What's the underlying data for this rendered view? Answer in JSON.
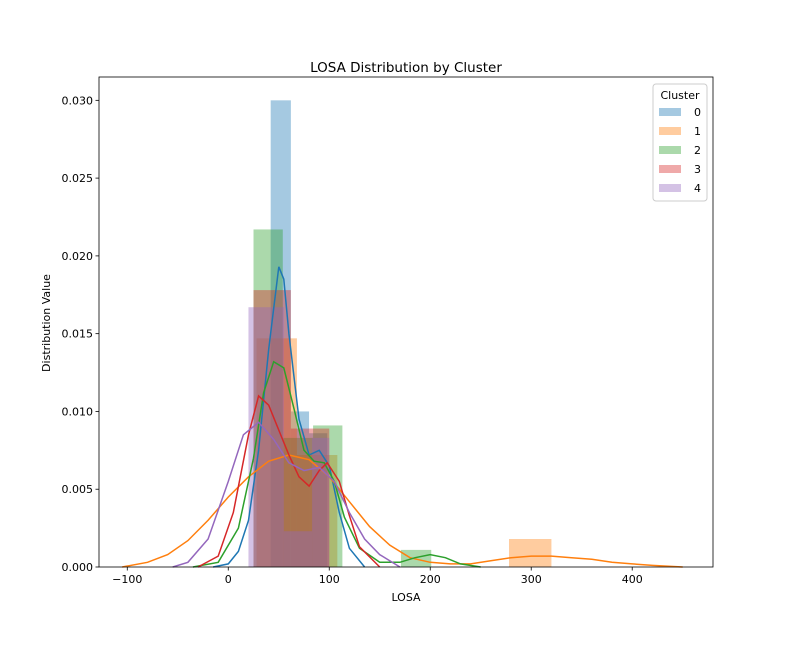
{
  "chart_data": {
    "type": "histogram+kde",
    "title": "LOSA Distribution by Cluster",
    "xlabel": "LOSA",
    "ylabel": "Distribution Value",
    "xlim": [
      -128,
      480
    ],
    "ylim": [
      0,
      0.0315
    ],
    "xticks": [
      -100,
      0,
      100,
      200,
      300,
      400
    ],
    "yticks": [
      "0.000",
      "0.005",
      "0.010",
      "0.015",
      "0.020",
      "0.025",
      "0.030"
    ],
    "legend": {
      "title": "Cluster",
      "position": "top-right"
    },
    "series": [
      {
        "name": "0",
        "color": "#1f77b4",
        "hist_bins": [
          [
            42,
            62,
            0.03
          ],
          [
            62,
            80,
            0.01
          ],
          [
            80,
            98,
            0.0086
          ]
        ],
        "kde": [
          [
            -15,
            0
          ],
          [
            0,
            0.0002
          ],
          [
            10,
            0.001
          ],
          [
            20,
            0.003
          ],
          [
            30,
            0.0075
          ],
          [
            40,
            0.014
          ],
          [
            50,
            0.0193
          ],
          [
            55,
            0.0185
          ],
          [
            60,
            0.015
          ],
          [
            70,
            0.0095
          ],
          [
            80,
            0.0072
          ],
          [
            90,
            0.0075
          ],
          [
            100,
            0.0065
          ],
          [
            110,
            0.0035
          ],
          [
            120,
            0.0012
          ],
          [
            135,
            0
          ]
        ]
      },
      {
        "name": "1",
        "color": "#ff7f0e",
        "hist_bins": [
          [
            28,
            68,
            0.0147
          ],
          [
            68,
            108,
            0.0072
          ],
          [
            278,
            320,
            0.0018
          ]
        ],
        "kde": [
          [
            -105,
            0
          ],
          [
            -80,
            0.0003
          ],
          [
            -60,
            0.0008
          ],
          [
            -40,
            0.0017
          ],
          [
            -20,
            0.003
          ],
          [
            0,
            0.0045
          ],
          [
            20,
            0.0058
          ],
          [
            40,
            0.0068
          ],
          [
            60,
            0.0072
          ],
          [
            80,
            0.0069
          ],
          [
            100,
            0.0058
          ],
          [
            120,
            0.0042
          ],
          [
            140,
            0.0026
          ],
          [
            160,
            0.0014
          ],
          [
            180,
            0.0006
          ],
          [
            200,
            0.0003
          ],
          [
            220,
            0.0002
          ],
          [
            240,
            0.0002
          ],
          [
            260,
            0.0004
          ],
          [
            280,
            0.0006
          ],
          [
            300,
            0.0007
          ],
          [
            320,
            0.0007
          ],
          [
            340,
            0.0006
          ],
          [
            360,
            0.0005
          ],
          [
            380,
            0.0003
          ],
          [
            400,
            0.0002
          ],
          [
            420,
            0.0001
          ],
          [
            450,
            0
          ]
        ]
      },
      {
        "name": "2",
        "color": "#2ca02c",
        "hist_bins": [
          [
            25,
            54,
            0.0217
          ],
          [
            54,
            84,
            0.0083
          ],
          [
            84,
            113,
            0.0091
          ],
          [
            171,
            201,
            0.0011
          ]
        ],
        "kde": [
          [
            -35,
            0
          ],
          [
            -10,
            0.0003
          ],
          [
            10,
            0.0025
          ],
          [
            25,
            0.007
          ],
          [
            35,
            0.0112
          ],
          [
            45,
            0.0132
          ],
          [
            55,
            0.0128
          ],
          [
            65,
            0.0102
          ],
          [
            75,
            0.0075
          ],
          [
            85,
            0.0068
          ],
          [
            95,
            0.0067
          ],
          [
            105,
            0.0055
          ],
          [
            115,
            0.0032
          ],
          [
            130,
            0.0012
          ],
          [
            150,
            0.0003
          ],
          [
            170,
            0.0003
          ],
          [
            185,
            0.0006
          ],
          [
            200,
            0.0008
          ],
          [
            215,
            0.0006
          ],
          [
            230,
            0.0002
          ],
          [
            250,
            0
          ]
        ]
      },
      {
        "name": "3",
        "color": "#d62728",
        "hist_bins": [
          [
            25,
            62,
            0.0178
          ],
          [
            62,
            100,
            0.0089
          ]
        ],
        "kde": [
          [
            -30,
            0
          ],
          [
            -10,
            0.0007
          ],
          [
            5,
            0.0035
          ],
          [
            20,
            0.0085
          ],
          [
            30,
            0.011
          ],
          [
            40,
            0.0104
          ],
          [
            50,
            0.0088
          ],
          [
            60,
            0.0072
          ],
          [
            70,
            0.0058
          ],
          [
            80,
            0.0052
          ],
          [
            90,
            0.0062
          ],
          [
            98,
            0.0067
          ],
          [
            110,
            0.0055
          ],
          [
            120,
            0.0033
          ],
          [
            130,
            0.0013
          ],
          [
            150,
            0
          ]
        ]
      },
      {
        "name": "4",
        "color": "#9467bd",
        "hist_bins": [
          [
            20,
            55,
            0.0167
          ],
          [
            55,
            83,
            0.0023
          ],
          [
            83,
            100,
            0.0083
          ]
        ],
        "kde": [
          [
            -55,
            0
          ],
          [
            -40,
            0.0003
          ],
          [
            -20,
            0.0018
          ],
          [
            0,
            0.0055
          ],
          [
            15,
            0.0085
          ],
          [
            30,
            0.0093
          ],
          [
            45,
            0.0082
          ],
          [
            60,
            0.0067
          ],
          [
            75,
            0.0062
          ],
          [
            90,
            0.0064
          ],
          [
            105,
            0.0055
          ],
          [
            120,
            0.0035
          ],
          [
            135,
            0.0018
          ],
          [
            150,
            0.0008
          ],
          [
            170,
            0
          ]
        ]
      }
    ]
  }
}
